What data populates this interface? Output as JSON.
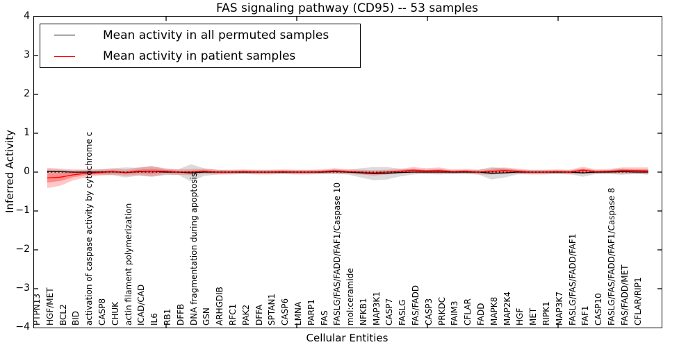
{
  "title": "FAS signaling pathway (CD95) -- 53 samples",
  "legend": {
    "position": "upper left",
    "items": [
      {
        "label": "Mean activity in all permuted samples",
        "color": "#000000"
      },
      {
        "label": "Mean activity in patient samples",
        "color": "#ff0000"
      }
    ]
  },
  "axes": {
    "ylabel": "Inferred Activity",
    "xlabel": "Cellular Entities",
    "y_tick_labels": [
      "4",
      "3",
      "2",
      "1",
      "0",
      "−1",
      "−2",
      "−3",
      "−4"
    ],
    "y_tick_values": [
      4,
      3,
      2,
      1,
      0,
      -1,
      -2,
      -3,
      -4
    ],
    "ylim": [
      -4,
      4
    ],
    "grid": false
  },
  "chart_data": {
    "type": "line",
    "title": "FAS signaling pathway (CD95) -- 53 samples",
    "xlabel": "Cellular Entities",
    "ylabel": "Inferred Activity",
    "ylim": [
      -4,
      4
    ],
    "legend_position": "upper left",
    "grid": false,
    "zero_line": {
      "style": "dotted",
      "color": "#000000",
      "y": 0
    },
    "categories": [
      "PTPN13",
      "HGF/MET",
      "BCL2",
      "BID",
      "activation of caspase activity by cytochrome c",
      "CASP8",
      "CHUK",
      "actin filament polymerization",
      "ICAD/CAD",
      "IL6",
      "RB1",
      "DFFB",
      "DNA fragmentation during apoptosis",
      "GSN",
      "ARHGDIB",
      "RFC1",
      "PAK2",
      "DFFA",
      "SPTAN1",
      "CASP6",
      "LMNA",
      "PARP1",
      "FAS",
      "FASLG/FAS/FADD/FAF1/Caspase 10",
      "mol:ceramide",
      "NFKB1",
      "MAP3K1",
      "CASP7",
      "FASLG",
      "FAS/FADD",
      "CASP3",
      "PRKDC",
      "FAIM3",
      "CFLAR",
      "FADD",
      "MAPK8",
      "MAP2K4",
      "HGF",
      "MET",
      "RIPK1",
      "MAP3K7",
      "FASLG/FAS/FADD/FAF1",
      "FAF1",
      "CASP10",
      "FASLG/FAS/FADD/FAF1/Caspase 8",
      "FAS/FADD/MET",
      "CFLAR/RIP1"
    ],
    "series": [
      {
        "name": "Mean activity in all permuted samples",
        "color": "#000000",
        "band_color": "#999999",
        "values": [
          0.02,
          0.01,
          0,
          0,
          0,
          0.01,
          -0.01,
          0.01,
          0.02,
          0,
          0,
          -0.02,
          0,
          0,
          0,
          0,
          0,
          0,
          0,
          0,
          0,
          0,
          0.01,
          0,
          -0.02,
          -0.04,
          -0.03,
          -0.01,
          0,
          0,
          0,
          0,
          0,
          0,
          -0.03,
          -0.02,
          0,
          0,
          0,
          0,
          0,
          -0.02,
          0,
          0,
          0.01,
          0,
          0
        ],
        "band_halfwidth": [
          0.05,
          0.05,
          0.04,
          0.05,
          0.07,
          0.09,
          0.13,
          0.1,
          0.14,
          0.08,
          0.07,
          0.22,
          0.1,
          0.06,
          0.05,
          0.05,
          0.05,
          0.05,
          0.05,
          0.05,
          0.05,
          0.05,
          0.06,
          0.06,
          0.12,
          0.17,
          0.16,
          0.1,
          0.06,
          0.05,
          0.06,
          0.05,
          0.05,
          0.06,
          0.16,
          0.12,
          0.06,
          0.05,
          0.05,
          0.05,
          0.05,
          0.1,
          0.05,
          0.05,
          0.08,
          0.05,
          0.06
        ]
      },
      {
        "name": "Mean activity in patient samples",
        "color": "#ff0000",
        "band_color": "#ff0000",
        "values": [
          -0.15,
          -0.13,
          -0.07,
          -0.03,
          -0.01,
          0.01,
          -0.01,
          0.02,
          0.02,
          0.02,
          0,
          0,
          0.02,
          0,
          0,
          0.01,
          0,
          0,
          0.01,
          0,
          0,
          0.01,
          0.03,
          0.01,
          0,
          -0.02,
          0,
          0.02,
          0.05,
          0.03,
          0.04,
          0.01,
          0.02,
          0,
          0.02,
          0.04,
          0.02,
          0,
          0,
          0.01,
          0,
          0.05,
          0.01,
          0.02,
          0.04,
          0.04,
          0.03
        ],
        "band_halfwidth": [
          0.26,
          0.22,
          0.14,
          0.1,
          0.08,
          0.08,
          0.08,
          0.1,
          0.13,
          0.08,
          0.07,
          0.08,
          0.07,
          0.06,
          0.06,
          0.06,
          0.06,
          0.06,
          0.06,
          0.06,
          0.06,
          0.06,
          0.07,
          0.06,
          0.06,
          0.07,
          0.06,
          0.06,
          0.08,
          0.07,
          0.08,
          0.06,
          0.06,
          0.06,
          0.08,
          0.08,
          0.07,
          0.06,
          0.06,
          0.06,
          0.06,
          0.09,
          0.06,
          0.06,
          0.08,
          0.08,
          0.09
        ]
      }
    ]
  }
}
